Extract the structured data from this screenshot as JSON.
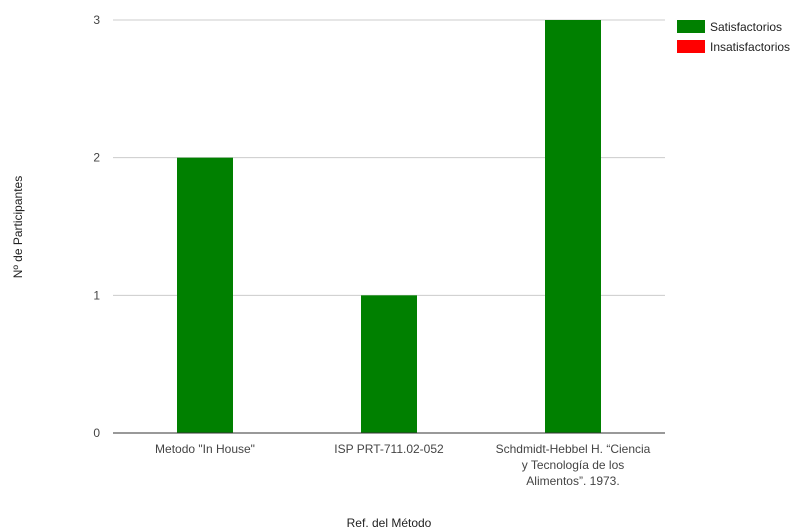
{
  "chart_data": {
    "type": "bar",
    "categories": [
      [
        "Metodo \"In House\""
      ],
      [
        "ISP PRT-711.02-052"
      ],
      [
        "Schdmidt-Hebbel H. “Ciencia",
        "y Tecnología de los",
        "Alimentos”. 1973."
      ]
    ],
    "series": [
      {
        "name": "Satisfactorios",
        "color": "#008000",
        "values": [
          2,
          1,
          3
        ]
      },
      {
        "name": "Insatisfactorios",
        "color": "#ff0000",
        "values": [
          0,
          0,
          0
        ]
      }
    ],
    "xlabel": "Ref. del Método",
    "ylabel": "Nº de Participantes",
    "ylim": [
      0,
      3
    ],
    "yticks": [
      "0",
      "1",
      "2",
      "3"
    ],
    "grid": true,
    "legend_position": "top-right"
  }
}
